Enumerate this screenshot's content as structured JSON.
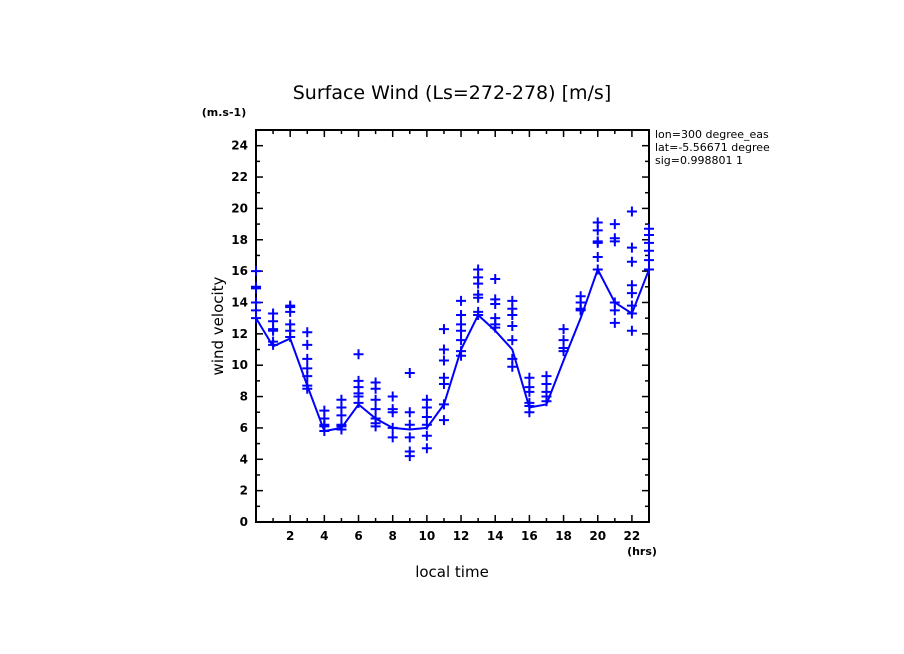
{
  "chart_data": {
    "type": "line",
    "title": "Surface Wind  (Ls=272-278) [m/s]",
    "xlabel": "local time",
    "ylabel": "wind velocity",
    "x_unit": "(hrs)",
    "y_unit": "(m.s-1)",
    "xlim": [
      0,
      23
    ],
    "ylim": [
      0,
      25
    ],
    "x_ticks": [
      2,
      4,
      6,
      8,
      10,
      12,
      14,
      16,
      18,
      20,
      22
    ],
    "y_ticks": [
      0,
      2,
      4,
      6,
      8,
      10,
      12,
      14,
      16,
      18,
      20,
      22,
      24
    ],
    "grid": false,
    "color": "#0000ff",
    "annotations": [
      "lon=300 degree_eas",
      "lat=-5.56671 degree",
      "sig=0.998801 1"
    ],
    "line": {
      "x": [
        0,
        1,
        2,
        3,
        4,
        5,
        6,
        7,
        8,
        9,
        10,
        11,
        12,
        13,
        14,
        15,
        16,
        17,
        18,
        19,
        20,
        21,
        22,
        23
      ],
      "y": [
        13,
        11.2,
        11.7,
        8.7,
        5.8,
        6.0,
        7.5,
        6.6,
        6.0,
        5.9,
        6.0,
        7.5,
        11.0,
        13.2,
        12.2,
        11.0,
        7.3,
        7.5,
        10.3,
        13.0,
        16.1,
        14.0,
        13.3,
        16.1
      ]
    },
    "scatter": [
      {
        "x": 0,
        "y": [
          16,
          15,
          14.9,
          14,
          13.5,
          13
        ]
      },
      {
        "x": 1,
        "y": [
          13.3,
          12.8,
          12.3,
          12.2,
          11.5,
          11.3
        ]
      },
      {
        "x": 2,
        "y": [
          13.8,
          13.7,
          13.4,
          12.6,
          12.2,
          11.8
        ]
      },
      {
        "x": 3,
        "y": [
          12.1,
          11.3,
          10.4,
          9.8,
          9.3,
          8.7,
          8.5
        ]
      },
      {
        "x": 4,
        "y": [
          7.1,
          6.6,
          6.2,
          6.1,
          5.8
        ]
      },
      {
        "x": 5,
        "y": [
          7.8,
          7.3,
          6.8,
          6.2,
          6.1,
          5.9
        ]
      },
      {
        "x": 6,
        "y": [
          10.7,
          9.0,
          8.6,
          8.2,
          8.0,
          7.6
        ]
      },
      {
        "x": 7,
        "y": [
          8.9,
          8.5,
          7.8,
          7.2,
          6.6,
          6.3,
          6.1
        ]
      },
      {
        "x": 8,
        "y": [
          8.0,
          7.2,
          7.0,
          6.0,
          5.4
        ]
      },
      {
        "x": 9,
        "y": [
          9.5,
          7.0,
          6.2,
          5.4,
          4.5,
          4.2
        ]
      },
      {
        "x": 10,
        "y": [
          7.8,
          7.3,
          6.7,
          6.2,
          5.5,
          4.7
        ]
      },
      {
        "x": 11,
        "y": [
          12.3,
          11.0,
          10.3,
          9.2,
          8.8,
          7.5,
          6.5
        ]
      },
      {
        "x": 12,
        "y": [
          14.1,
          13.2,
          12.6,
          12.2,
          11.6,
          10.9,
          10.6
        ]
      },
      {
        "x": 13,
        "y": [
          16.1,
          15.6,
          15.2,
          14.5,
          14.3,
          13.4,
          13.2
        ]
      },
      {
        "x": 14,
        "y": [
          15.5,
          14.2,
          13.9,
          13.0,
          12.6,
          12.4
        ]
      },
      {
        "x": 15,
        "y": [
          14.1,
          13.6,
          13.2,
          12.5,
          11.6,
          10.4,
          9.9
        ]
      },
      {
        "x": 16,
        "y": [
          9.2,
          8.6,
          8.3,
          7.6,
          7.4,
          7.0
        ]
      },
      {
        "x": 17,
        "y": [
          9.3,
          8.8,
          8.3,
          8.0,
          7.7
        ]
      },
      {
        "x": 18,
        "y": [
          12.3,
          11.6,
          11.1,
          10.9
        ]
      },
      {
        "x": 19,
        "y": [
          14.4,
          14.0,
          13.6,
          13.5
        ]
      },
      {
        "x": 20,
        "y": [
          19.1,
          18.6,
          17.9,
          17.8,
          16.9,
          16.1
        ]
      },
      {
        "x": 21,
        "y": [
          19.0,
          18.1,
          17.9,
          14.0,
          13.5,
          12.7
        ]
      },
      {
        "x": 22,
        "y": [
          19.8,
          17.5,
          16.6,
          15.1,
          14.6,
          13.8,
          13.3,
          12.2
        ]
      },
      {
        "x": 23,
        "y": [
          18.7,
          18.3,
          17.8,
          17.3,
          16.7,
          16.1
        ]
      }
    ]
  }
}
